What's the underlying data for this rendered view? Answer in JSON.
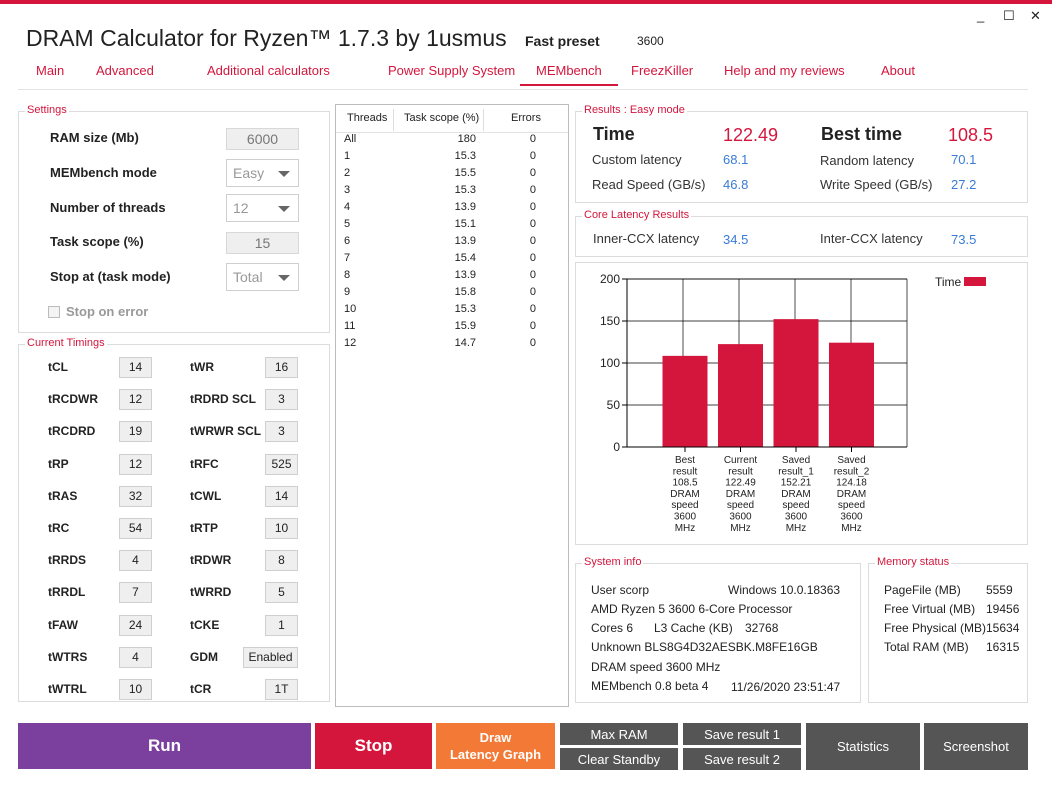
{
  "window": {
    "title": "DRAM Calculator for Ryzen™ 1.7.3 by 1usmus",
    "preset_label": "Fast preset",
    "preset_value": "3600",
    "minimize": "_",
    "maximize": "☐",
    "close": "✕"
  },
  "nav": [
    {
      "label": "Main"
    },
    {
      "label": "Advanced"
    },
    {
      "label": "Additional calculators"
    },
    {
      "label": "Power Supply System"
    },
    {
      "label": "MEMbench"
    },
    {
      "label": "FreezKiller"
    },
    {
      "label": "Help and my reviews"
    },
    {
      "label": "About"
    }
  ],
  "settings": {
    "title": "Settings",
    "ram_size_label": "RAM size (Mb)",
    "ram_size_value": "6000",
    "mode_label": "MEMbench mode",
    "mode_value": "Easy",
    "threads_label": "Number of threads",
    "threads_value": "12",
    "scope_label": "Task scope (%)",
    "scope_value": "15",
    "stop_label": "Stop at (task mode)",
    "stop_value": "Total",
    "stop_on_error_label": "Stop on error"
  },
  "timings": {
    "title": "Current Timings",
    "left": [
      {
        "name": "tCL",
        "value": "14"
      },
      {
        "name": "tRCDWR",
        "value": "12"
      },
      {
        "name": "tRCDRD",
        "value": "19"
      },
      {
        "name": "tRP",
        "value": "12"
      },
      {
        "name": "tRAS",
        "value": "32"
      },
      {
        "name": "tRC",
        "value": "54"
      },
      {
        "name": "tRRDS",
        "value": "4"
      },
      {
        "name": "tRRDL",
        "value": "7"
      },
      {
        "name": "tFAW",
        "value": "24"
      },
      {
        "name": "tWTRS",
        "value": "4"
      },
      {
        "name": "tWTRL",
        "value": "10"
      }
    ],
    "right": [
      {
        "name": "tWR",
        "value": "16"
      },
      {
        "name": "tRDRD SCL",
        "value": "3"
      },
      {
        "name": "tWRWR SCL",
        "value": "3"
      },
      {
        "name": "tRFC",
        "value": "525"
      },
      {
        "name": "tCWL",
        "value": "14"
      },
      {
        "name": "tRTP",
        "value": "10"
      },
      {
        "name": "tRDWR",
        "value": "8"
      },
      {
        "name": "tWRRD",
        "value": "5"
      },
      {
        "name": "tCKE",
        "value": "1"
      },
      {
        "name": "GDM",
        "value": "Enabled"
      },
      {
        "name": "tCR",
        "value": "1T"
      }
    ]
  },
  "threads_table": {
    "headers": [
      "Threads",
      "Task scope (%)",
      "Errors"
    ],
    "rows": [
      [
        "All",
        "180",
        "0"
      ],
      [
        "1",
        "15.3",
        "0"
      ],
      [
        "2",
        "15.5",
        "0"
      ],
      [
        "3",
        "15.3",
        "0"
      ],
      [
        "4",
        "13.9",
        "0"
      ],
      [
        "5",
        "15.1",
        "0"
      ],
      [
        "6",
        "13.9",
        "0"
      ],
      [
        "7",
        "15.4",
        "0"
      ],
      [
        "8",
        "13.9",
        "0"
      ],
      [
        "9",
        "15.8",
        "0"
      ],
      [
        "10",
        "15.3",
        "0"
      ],
      [
        "11",
        "15.9",
        "0"
      ],
      [
        "12",
        "14.7",
        "0"
      ]
    ]
  },
  "results": {
    "title": "Results : Easy mode",
    "time_label": "Time",
    "time_value": "122.49",
    "best_label": "Best time",
    "best_value": "108.5",
    "custom_latency_label": "Custom latency",
    "custom_latency_value": "68.1",
    "random_latency_label": "Random latency",
    "random_latency_value": "70.1",
    "read_label": "Read Speed (GB/s)",
    "read_value": "46.8",
    "write_label": "Write Speed (GB/s)",
    "write_value": "27.2"
  },
  "core_latency": {
    "title": "Core Latency Results",
    "inner_label": "Inner-CCX latency",
    "inner_value": "34.5",
    "inter_label": "Inter-CCX latency",
    "inter_value": "73.5"
  },
  "chart_data": {
    "type": "bar",
    "categories": [
      [
        "Best",
        "result",
        "108.5",
        "DRAM",
        "speed",
        "3600",
        "MHz"
      ],
      [
        "Current",
        "result",
        "122.49",
        "DRAM",
        "speed",
        "3600",
        "MHz"
      ],
      [
        "Saved",
        "result_1",
        "152.21",
        "DRAM",
        "speed",
        "3600",
        "MHz"
      ],
      [
        "Saved",
        "result_2",
        "124.18",
        "DRAM",
        "speed",
        "3600",
        "MHz"
      ]
    ],
    "values": [
      108.5,
      122.49,
      152.21,
      124.18
    ],
    "ylim": [
      0,
      200
    ],
    "yticks": [
      "0",
      "50",
      "100",
      "150",
      "200"
    ],
    "legend": "Time",
    "legend_position": "top-right",
    "bar_color": "#d4163d",
    "grid": true
  },
  "system_info": {
    "title": "System info",
    "user_label": "User scorp",
    "os": "Windows 10.0.18363",
    "cpu": "AMD Ryzen 5 3600 6-Core Processor",
    "cores": "Cores 6",
    "l3_label": "L3 Cache (KB)",
    "l3_value": "32768",
    "dram": "Unknown BLS8G4D32AESBK.M8FE16GB",
    "dram_speed": "DRAM speed 3600 MHz",
    "bench_version": "MEMbench 0.8 beta 4",
    "timestamp": "11/26/2020 23:51:47"
  },
  "memory_status": {
    "title": "Memory status",
    "rows": [
      {
        "label": "PageFile (MB)",
        "value": "5559"
      },
      {
        "label": "Free Virtual (MB)",
        "value": "19456"
      },
      {
        "label": "Free Physical (MB)",
        "value": "15634"
      },
      {
        "label": "Total RAM (MB)",
        "value": "16315"
      }
    ]
  },
  "buttons": {
    "run": "Run",
    "stop": "Stop",
    "draw_line1": "Draw",
    "draw_line2": "Latency Graph",
    "max_ram": "Max RAM",
    "clear_standby": "Clear Standby",
    "save1": "Save result 1",
    "save2": "Save result 2",
    "statistics": "Statistics",
    "screenshot": "Screenshot"
  },
  "colors": {
    "accent": "#d4163d",
    "run": "#7b3f9d",
    "stop": "#d4163d",
    "draw": "#f37a36",
    "gray_button": "#555555",
    "value_blue": "#3a7bd5"
  }
}
